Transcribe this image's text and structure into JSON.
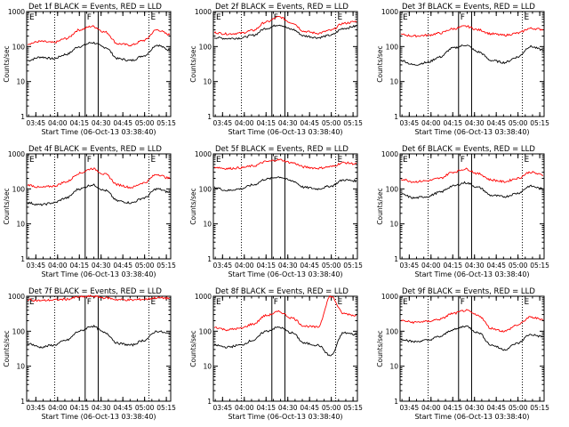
{
  "colors": {
    "background": "#ffffff",
    "axes": "#000000",
    "events": "#000000",
    "lld": "#ff0000"
  },
  "chart_data": [
    {
      "type": "line",
      "title": "Det 1f BLACK = Events, RED = LLD",
      "ylabel": "Counts/sec",
      "xlabel": "Start Time (06-Oct-13 03:38:40)",
      "yscale": "log",
      "ylim": [
        1,
        1000
      ],
      "yticks": [
        "1",
        "10",
        "100",
        "1000"
      ],
      "xticks": [
        "03:45",
        "04:00",
        "04:15",
        "04:30",
        "04:45",
        "05:00",
        "05:15"
      ],
      "grid": false,
      "series": [
        {
          "name": "Events",
          "color": "#000000",
          "values": [
            40,
            50,
            45,
            60,
            100,
            130,
            95,
            45,
            40,
            55,
            110,
            80
          ]
        },
        {
          "name": "LLD",
          "color": "#ff0000",
          "values": [
            120,
            140,
            130,
            170,
            300,
            380,
            260,
            120,
            110,
            150,
            300,
            220
          ]
        }
      ],
      "vlines": {
        "dotted": [
          "03:58",
          "05:03"
        ],
        "solid": [
          "04:19",
          "04:28"
        ]
      },
      "region_labels": [
        "E",
        "F",
        "E"
      ]
    },
    {
      "type": "line",
      "title": "Det 2f BLACK = Events, RED = LLD",
      "ylabel": "Counts/sec",
      "xlabel": "Start Time (06-Oct-13 03:38:40)",
      "yscale": "log",
      "ylim": [
        1,
        1000
      ],
      "yticks": [
        "1",
        "10",
        "100",
        "1000"
      ],
      "xticks": [
        "03:45",
        "04:00",
        "04:15",
        "04:30",
        "04:45",
        "05:00",
        "05:15"
      ],
      "grid": false,
      "series": [
        {
          "name": "Events",
          "color": "#000000",
          "values": [
            180,
            170,
            175,
            210,
            330,
            420,
            310,
            200,
            180,
            210,
            330,
            380
          ]
        },
        {
          "name": "LLD",
          "color": "#ff0000",
          "values": [
            250,
            230,
            240,
            290,
            500,
            700,
            480,
            270,
            240,
            290,
            460,
            520
          ]
        }
      ],
      "vlines": {
        "dotted": [
          "03:58",
          "05:03"
        ],
        "solid": [
          "04:19",
          "04:28"
        ]
      },
      "region_labels": [
        "E",
        "F",
        "E"
      ]
    },
    {
      "type": "line",
      "title": "Det 3f BLACK = Events, RED = LLD",
      "ylabel": "Counts/sec",
      "xlabel": "Start Time (06-Oct-13 03:38:40)",
      "yscale": "log",
      "ylim": [
        1,
        1000
      ],
      "yticks": [
        "1",
        "10",
        "100",
        "1000"
      ],
      "xticks": [
        "03:45",
        "04:00",
        "04:15",
        "04:30",
        "04:45",
        "05:00",
        "05:15"
      ],
      "grid": false,
      "series": [
        {
          "name": "Events",
          "color": "#000000",
          "values": [
            40,
            30,
            35,
            50,
            90,
            110,
            70,
            40,
            35,
            50,
            100,
            80
          ]
        },
        {
          "name": "LLD",
          "color": "#ff0000",
          "values": [
            220,
            200,
            210,
            240,
            320,
            380,
            300,
            230,
            210,
            240,
            330,
            310
          ]
        }
      ],
      "vlines": {
        "dotted": [
          "03:58",
          "05:03"
        ],
        "solid": [
          "04:19",
          "04:28"
        ]
      },
      "region_labels": [
        "E",
        "F",
        "E"
      ]
    },
    {
      "type": "line",
      "title": "Det 4f BLACK = Events, RED = LLD",
      "ylabel": "Counts/sec",
      "xlabel": "Start Time (06-Oct-13 03:38:40)",
      "yscale": "log",
      "ylim": [
        1,
        1000
      ],
      "yticks": [
        "1",
        "10",
        "100",
        "1000"
      ],
      "xticks": [
        "03:45",
        "04:00",
        "04:15",
        "04:30",
        "04:45",
        "05:00",
        "05:15"
      ],
      "grid": false,
      "series": [
        {
          "name": "Events",
          "color": "#000000",
          "values": [
            40,
            35,
            40,
            55,
            100,
            130,
            90,
            45,
            40,
            55,
            100,
            80
          ]
        },
        {
          "name": "LLD",
          "color": "#ff0000",
          "values": [
            130,
            110,
            120,
            160,
            280,
            380,
            260,
            130,
            110,
            150,
            260,
            200
          ]
        }
      ],
      "vlines": {
        "dotted": [
          "03:58",
          "05:03"
        ],
        "solid": [
          "04:19",
          "04:28"
        ]
      },
      "region_labels": [
        "E",
        "F",
        "E"
      ]
    },
    {
      "type": "line",
      "title": "Det 5f BLACK = Events, RED = LLD",
      "ylabel": "Counts/sec",
      "xlabel": "Start Time (06-Oct-13 03:38:40)",
      "yscale": "log",
      "ylim": [
        1,
        1000
      ],
      "yticks": [
        "1",
        "10",
        "100",
        "1000"
      ],
      "xticks": [
        "03:45",
        "04:00",
        "04:15",
        "04:30",
        "04:45",
        "05:00",
        "05:15"
      ],
      "grid": false,
      "series": [
        {
          "name": "Events",
          "color": "#000000",
          "values": [
            110,
            90,
            100,
            130,
            190,
            220,
            170,
            110,
            100,
            120,
            180,
            170
          ]
        },
        {
          "name": "LLD",
          "color": "#ff0000",
          "values": [
            420,
            380,
            400,
            450,
            600,
            680,
            560,
            420,
            390,
            430,
            560,
            520
          ]
        }
      ],
      "vlines": {
        "dotted": [
          "03:58",
          "05:03"
        ],
        "solid": [
          "04:19",
          "04:28"
        ]
      },
      "region_labels": [
        "E",
        "F",
        "E"
      ]
    },
    {
      "type": "line",
      "title": "Det 6f BLACK = Events, RED = LLD",
      "ylabel": "Counts/sec",
      "xlabel": "Start Time (06-Oct-13 03:38:40)",
      "yscale": "log",
      "ylim": [
        1,
        1000
      ],
      "yticks": [
        "1",
        "10",
        "100",
        "1000"
      ],
      "xticks": [
        "03:45",
        "04:00",
        "04:15",
        "04:30",
        "04:45",
        "05:00",
        "05:15"
      ],
      "grid": false,
      "series": [
        {
          "name": "Events",
          "color": "#000000",
          "values": [
            70,
            55,
            60,
            80,
            120,
            150,
            110,
            65,
            60,
            75,
            120,
            100
          ]
        },
        {
          "name": "LLD",
          "color": "#ff0000",
          "values": [
            190,
            160,
            170,
            200,
            300,
            370,
            270,
            180,
            160,
            200,
            300,
            250
          ]
        }
      ],
      "vlines": {
        "dotted": [
          "03:58",
          "05:03"
        ],
        "solid": [
          "04:19",
          "04:28"
        ]
      },
      "region_labels": [
        "E",
        "F",
        "E"
      ]
    },
    {
      "type": "line",
      "title": "Det 7f BLACK = Events, RED = LLD",
      "ylabel": "Counts/sec",
      "xlabel": "Start Time (06-Oct-13 03:38:40)",
      "yscale": "log",
      "ylim": [
        1,
        1000
      ],
      "yticks": [
        "1",
        "10",
        "100",
        "1000"
      ],
      "xticks": [
        "03:45",
        "04:00",
        "04:15",
        "04:30",
        "04:45",
        "05:00",
        "05:15"
      ],
      "grid": false,
      "series": [
        {
          "name": "Events",
          "color": "#000000",
          "values": [
            45,
            35,
            40,
            55,
            100,
            140,
            90,
            45,
            40,
            55,
            100,
            85
          ]
        },
        {
          "name": "LLD",
          "color": "#ff0000",
          "values": [
            800,
            750,
            780,
            820,
            950,
            1000,
            900,
            800,
            780,
            820,
            900,
            880
          ]
        }
      ],
      "vlines": {
        "dotted": [
          "03:58",
          "05:03"
        ],
        "solid": [
          "04:19",
          "04:28"
        ]
      },
      "region_labels": [
        "E",
        "F",
        "E"
      ]
    },
    {
      "type": "line",
      "title": "Det 8f BLACK = Events, RED = LLD",
      "ylabel": "Counts/sec",
      "xlabel": "Start Time (06-Oct-13 03:38:40)",
      "yscale": "log",
      "ylim": [
        1,
        1000
      ],
      "yticks": [
        "1",
        "10",
        "100",
        "1000"
      ],
      "xticks": [
        "03:45",
        "04:00",
        "04:15",
        "04:30",
        "04:45",
        "05:00",
        "05:15"
      ],
      "grid": false,
      "series": [
        {
          "name": "Events",
          "color": "#000000",
          "values": [
            40,
            35,
            40,
            55,
            100,
            130,
            90,
            45,
            40,
            20,
            90,
            80
          ]
        },
        {
          "name": "LLD",
          "color": "#ff0000",
          "values": [
            130,
            110,
            120,
            160,
            280,
            360,
            240,
            140,
            130,
            1000,
            320,
            280
          ]
        }
      ],
      "vlines": {
        "dotted": [
          "03:58",
          "05:03"
        ],
        "solid": [
          "04:19",
          "04:28"
        ]
      },
      "region_labels": [
        "E",
        "F",
        "E"
      ]
    },
    {
      "type": "line",
      "title": "Det 9f BLACK = Events, RED = LLD",
      "ylabel": "Counts/sec",
      "xlabel": "Start Time (06-Oct-13 03:38:40)",
      "yscale": "log",
      "ylim": [
        1,
        1000
      ],
      "yticks": [
        "1",
        "10",
        "100",
        "1000"
      ],
      "xticks": [
        "03:45",
        "04:00",
        "04:15",
        "04:30",
        "04:45",
        "05:00",
        "05:15"
      ],
      "grid": false,
      "series": [
        {
          "name": "Events",
          "color": "#000000",
          "values": [
            60,
            50,
            55,
            70,
            110,
            140,
            90,
            40,
            30,
            45,
            80,
            70
          ]
        },
        {
          "name": "LLD",
          "color": "#ff0000",
          "values": [
            200,
            180,
            190,
            220,
            320,
            390,
            280,
            120,
            100,
            150,
            250,
            220
          ]
        }
      ],
      "vlines": {
        "dotted": [
          "03:58",
          "05:03"
        ],
        "solid": [
          "04:19",
          "04:28"
        ]
      },
      "region_labels": [
        "E",
        "F",
        "E"
      ]
    }
  ]
}
